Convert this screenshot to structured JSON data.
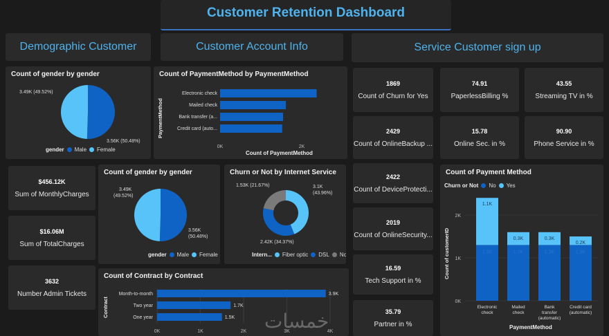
{
  "title": "Customer Retention Dashboard",
  "sections": {
    "demographic": "Demographic Customer",
    "account": "Customer Account Info",
    "service": "Service Customer sign up"
  },
  "colors": {
    "male": "#0f63c4",
    "female": "#58c3f8",
    "no": "#0f63c4",
    "yes": "#58c3f8",
    "dsl_gray": "#7a7a7a",
    "accent": "#4fb3ee"
  },
  "demo_gender": {
    "title": "Count of gender by gender",
    "label_female": "3.49K (49.52%)",
    "label_male": "3.56K (50.48%)",
    "legend_title": "gender",
    "legend_male": "Male",
    "legend_female": "Female"
  },
  "demo_kpis": [
    {
      "value": "$456.12K",
      "label": "Sum of MonthlyCharges"
    },
    {
      "value": "$16.06M",
      "label": "Sum of TotalCharges"
    },
    {
      "value": "3632",
      "label": "Number Admin Tickets"
    }
  ],
  "payment_method": {
    "title": "Count of PaymentMethod by PaymentMethod",
    "y_label": "PaymentMethod",
    "x_label": "Count of PaymentMethod",
    "categories": [
      "Electronic check",
      "Mailed check",
      "Bank transfer (a...",
      "Credit card (auto..."
    ],
    "tick_labels": [
      "0K",
      "2K"
    ]
  },
  "gender2": {
    "title": "Count of gender by gender",
    "label_female_1": "3.49K",
    "label_female_2": "(49.52%)",
    "label_male_1": "3.56K",
    "label_male_2": "(50.48%)",
    "legend_title": "gender",
    "legend_male": "Male",
    "legend_female": "Female"
  },
  "internet": {
    "title": "Churn or Not by Internet Service",
    "label_no": "1.53K (21.67%)",
    "label_fiber_1": "3.1K",
    "label_fiber_2": "(43.96%)",
    "label_dsl": "2.42K (34.37%)",
    "legend_title": "Intern...",
    "legend_fiber": "Fiber optic",
    "legend_dsl": "DSL",
    "legend_no": "No"
  },
  "contract": {
    "title": "Count of Contract by Contract",
    "y_label": "Contract",
    "categories": [
      "Month-to-month",
      "Two year",
      "One year"
    ],
    "value_labels": [
      "3.9K",
      "1.7K",
      "1.5K"
    ],
    "tick_labels": [
      "0K",
      "1K",
      "2K",
      "3K",
      "4K"
    ]
  },
  "service_kpis": [
    {
      "value": "1869",
      "label": "Count of Churn for Yes"
    },
    {
      "value": "74.91",
      "label": "PaperlessBilling %"
    },
    {
      "value": "43.55",
      "label": "Streaming TV in %"
    },
    {
      "value": "2429",
      "label": "Count of OnlineBackup ..."
    },
    {
      "value": "15.78",
      "label": "Online Sec. in %"
    },
    {
      "value": "90.90",
      "label": "Phone Service in %"
    },
    {
      "value": "2422",
      "label": "Count of DeviceProtecti..."
    },
    {
      "value": "2019",
      "label": "Count of OnlineSecurity..."
    },
    {
      "value": "16.59",
      "label": "Tech Support in %"
    },
    {
      "value": "35.79",
      "label": "Partner in %"
    }
  ],
  "payment_stack": {
    "title": "Count of Payment Method",
    "legend_title": "Churn or Not",
    "legend_no": "No",
    "legend_yes": "Yes",
    "y_label": "Count of customerID",
    "x_label": "PaymentMethod",
    "y_ticks": [
      "2K",
      "1K",
      "0K"
    ],
    "yes_labels": [
      "1.1K",
      "0.3K",
      "0.3K",
      "0.2K"
    ],
    "no_labels": [
      "1.3K",
      "1.3K",
      "1.3K",
      "1.3K"
    ],
    "cat_lines": [
      [
        "Electronic",
        "check"
      ],
      [
        "Mailed",
        "check"
      ],
      [
        "Bank",
        "transfer",
        "(automatic)"
      ],
      [
        "Credit card",
        "(automatic)"
      ]
    ]
  },
  "chart_data": [
    {
      "type": "pie",
      "title": "Count of gender by gender",
      "categories": [
        "Male",
        "Female"
      ],
      "values": [
        3.56,
        3.49
      ],
      "units": "K",
      "percent": [
        50.48,
        49.52
      ]
    },
    {
      "type": "bar",
      "orientation": "horizontal",
      "title": "Count of PaymentMethod by PaymentMethod",
      "categories": [
        "Electronic check",
        "Mailed check",
        "Bank transfer (automatic)",
        "Credit card (automatic)"
      ],
      "values": [
        2365,
        1612,
        1544,
        1522
      ],
      "xlabel": "Count of PaymentMethod",
      "ylabel": "PaymentMethod",
      "xlim": [
        0,
        2600
      ]
    },
    {
      "type": "pie",
      "title": "Count of gender by gender",
      "categories": [
        "Male",
        "Female"
      ],
      "values": [
        3.56,
        3.49
      ],
      "units": "K",
      "percent": [
        50.48,
        49.52
      ]
    },
    {
      "type": "pie",
      "subtype": "donut",
      "title": "Churn or Not by Internet Service",
      "categories": [
        "Fiber optic",
        "DSL",
        "No"
      ],
      "values": [
        3.1,
        2.42,
        1.53
      ],
      "units": "K",
      "percent": [
        43.96,
        34.37,
        21.67
      ]
    },
    {
      "type": "bar",
      "orientation": "horizontal",
      "title": "Count of Contract by Contract",
      "categories": [
        "Month-to-month",
        "Two year",
        "One year"
      ],
      "values": [
        3.9,
        1.7,
        1.5
      ],
      "units": "K",
      "xlim": [
        0,
        4
      ],
      "ylabel": "Contract"
    },
    {
      "type": "bar",
      "stacked": true,
      "title": "Count of Payment Method",
      "categories": [
        "Electronic check",
        "Mailed check",
        "Bank transfer (automatic)",
        "Credit card (automatic)"
      ],
      "series": [
        {
          "name": "No",
          "values": [
            1.3,
            1.3,
            1.3,
            1.3
          ]
        },
        {
          "name": "Yes",
          "values": [
            1.1,
            0.3,
            0.3,
            0.2
          ]
        }
      ],
      "units": "K",
      "ylim": [
        0,
        2.5
      ],
      "xlabel": "PaymentMethod",
      "ylabel": "Count of customerID",
      "legend": "Churn or Not"
    }
  ]
}
